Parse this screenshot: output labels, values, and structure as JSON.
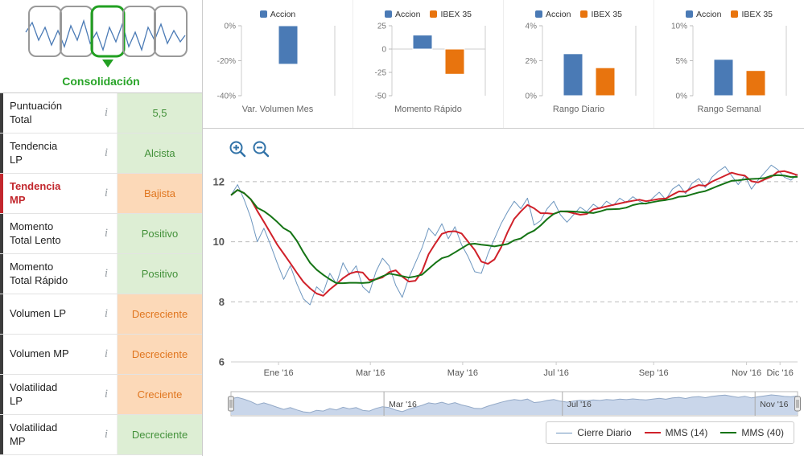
{
  "sidebar": {
    "phase_label": "Consolidación",
    "info_icon": "i",
    "rows": [
      {
        "label": "Puntuación Total",
        "value": "5,5",
        "status": "green",
        "highlight": false
      },
      {
        "label": "Tendencia LP",
        "value": "Alcista",
        "status": "green",
        "highlight": false
      },
      {
        "label": "Tendencia MP",
        "value": "Bajista",
        "status": "orange",
        "highlight": true
      },
      {
        "label": "Momento Total Lento",
        "value": "Positivo",
        "status": "green",
        "highlight": false
      },
      {
        "label": "Momento Total Rápido",
        "value": "Positivo",
        "status": "green",
        "highlight": false
      },
      {
        "label": "Volumen LP",
        "value": "Decreciente",
        "status": "orange",
        "highlight": false
      },
      {
        "label": "Volumen MP",
        "value": "Decreciente",
        "status": "orange",
        "highlight": false
      },
      {
        "label": "Volatilidad LP",
        "value": "Creciente",
        "status": "orange",
        "highlight": false
      },
      {
        "label": "Volatilidad MP",
        "value": "Decreciente",
        "status": "green",
        "highlight": false
      }
    ]
  },
  "colors": {
    "accion_blue": "#4a7ab5",
    "ibex_orange": "#e8740e",
    "close_blue": "#6d96bf",
    "mms14_red": "#d0212a",
    "mms40_green": "#157415",
    "green_badge_bg": "#ddeed4",
    "green_badge_text": "#43913a",
    "orange_badge_bg": "#fcd9b8",
    "orange_badge_text": "#e0761f",
    "navigator_fill": "#c9d6ea"
  },
  "chart_data": [
    {
      "type": "bar",
      "title": "Var. Volumen Mes",
      "legend": [
        {
          "name": "Accion",
          "color": "#4a7ab5"
        }
      ],
      "series": [
        {
          "name": "Accion",
          "value": -22,
          "color": "#4a7ab5"
        }
      ],
      "ylim": [
        -40,
        0
      ],
      "yticks": [
        {
          "v": 0,
          "label": "0%"
        },
        {
          "v": -20,
          "label": "-20%"
        },
        {
          "v": -40,
          "label": "-40%"
        }
      ]
    },
    {
      "type": "bar",
      "title": "Momento Rápido",
      "legend": [
        {
          "name": "Accion",
          "color": "#4a7ab5"
        },
        {
          "name": "IBEX 35",
          "color": "#e8740e"
        }
      ],
      "series": [
        {
          "name": "Accion",
          "value": 15,
          "color": "#4a7ab5"
        },
        {
          "name": "IBEX 35",
          "value": -27,
          "color": "#e8740e"
        }
      ],
      "ylim": [
        -50,
        25
      ],
      "yticks": [
        {
          "v": 25,
          "label": "25"
        },
        {
          "v": 0,
          "label": "0"
        },
        {
          "v": -25,
          "label": "-25"
        },
        {
          "v": -50,
          "label": "-50"
        }
      ]
    },
    {
      "type": "bar",
      "title": "Rango Diario",
      "legend": [
        {
          "name": "Accion",
          "color": "#4a7ab5"
        },
        {
          "name": "IBEX 35",
          "color": "#e8740e"
        }
      ],
      "series": [
        {
          "name": "Accion",
          "value": 2.4,
          "color": "#4a7ab5"
        },
        {
          "name": "IBEX 35",
          "value": 1.6,
          "color": "#e8740e"
        }
      ],
      "ylim": [
        0,
        4
      ],
      "yticks": [
        {
          "v": 4,
          "label": "4%"
        },
        {
          "v": 2,
          "label": "2%"
        },
        {
          "v": 0,
          "label": "0%"
        }
      ]
    },
    {
      "type": "bar",
      "title": "Rango Semanal",
      "legend": [
        {
          "name": "Accion",
          "color": "#4a7ab5"
        },
        {
          "name": "IBEX 35",
          "color": "#e8740e"
        }
      ],
      "series": [
        {
          "name": "Accion",
          "value": 5.2,
          "color": "#4a7ab5"
        },
        {
          "name": "IBEX 35",
          "value": 3.6,
          "color": "#e8740e"
        }
      ],
      "ylim": [
        0,
        10
      ],
      "yticks": [
        {
          "v": 10,
          "label": "10%"
        },
        {
          "v": 5,
          "label": "5%"
        },
        {
          "v": 0,
          "label": "0%"
        }
      ]
    },
    {
      "type": "line",
      "title": "",
      "ylim": [
        6,
        12.8
      ],
      "yticks": [
        12,
        10,
        8,
        6
      ],
      "xticks": [
        "Ene '16",
        "Mar '16",
        "May '16",
        "Jul '16",
        "Sep '16",
        "Nov '16",
        "Dic '16"
      ],
      "xtick_pos": [
        0.084,
        0.246,
        0.409,
        0.574,
        0.746,
        0.91,
        0.969
      ],
      "series": [
        {
          "name": "Cierre Diario",
          "color": "#6d96bf",
          "width": 1,
          "values": [
            11.55,
            11.9,
            11.4,
            10.8,
            10.0,
            10.45,
            9.9,
            9.3,
            8.75,
            9.2,
            8.6,
            8.1,
            7.9,
            8.5,
            8.3,
            8.95,
            8.6,
            9.3,
            8.9,
            9.2,
            8.5,
            8.3,
            9.0,
            9.45,
            9.2,
            8.55,
            8.15,
            8.8,
            9.3,
            9.8,
            10.45,
            10.2,
            10.6,
            10.1,
            10.5,
            9.9,
            9.5,
            9.0,
            8.95,
            9.6,
            10.1,
            10.6,
            11.0,
            11.35,
            11.1,
            11.45,
            10.55,
            10.7,
            11.1,
            11.35,
            10.9,
            10.65,
            10.9,
            11.15,
            11.0,
            11.25,
            11.1,
            11.35,
            11.2,
            11.45,
            11.3,
            11.5,
            11.35,
            11.25,
            11.45,
            11.65,
            11.4,
            11.75,
            11.9,
            11.6,
            11.95,
            12.1,
            11.8,
            12.15,
            12.35,
            12.5,
            12.2,
            11.9,
            12.2,
            11.75,
            12.05,
            12.3,
            12.55,
            12.4,
            12.15,
            12.05,
            12.25
          ]
        },
        {
          "name": "MMS (14)",
          "color": "#d0212a",
          "width": 2,
          "derived": "sma",
          "derived_from": "Cierre Diario",
          "window_points": 4
        },
        {
          "name": "MMS (40)",
          "color": "#157415",
          "width": 2,
          "derived": "sma",
          "derived_from": "Cierre Diario",
          "window_points": 10
        }
      ],
      "navigator": {
        "labels": [
          "Mar '16",
          "Jul '16",
          "Nov '16"
        ],
        "label_pos": [
          0.27,
          0.585,
          0.925
        ]
      }
    }
  ]
}
